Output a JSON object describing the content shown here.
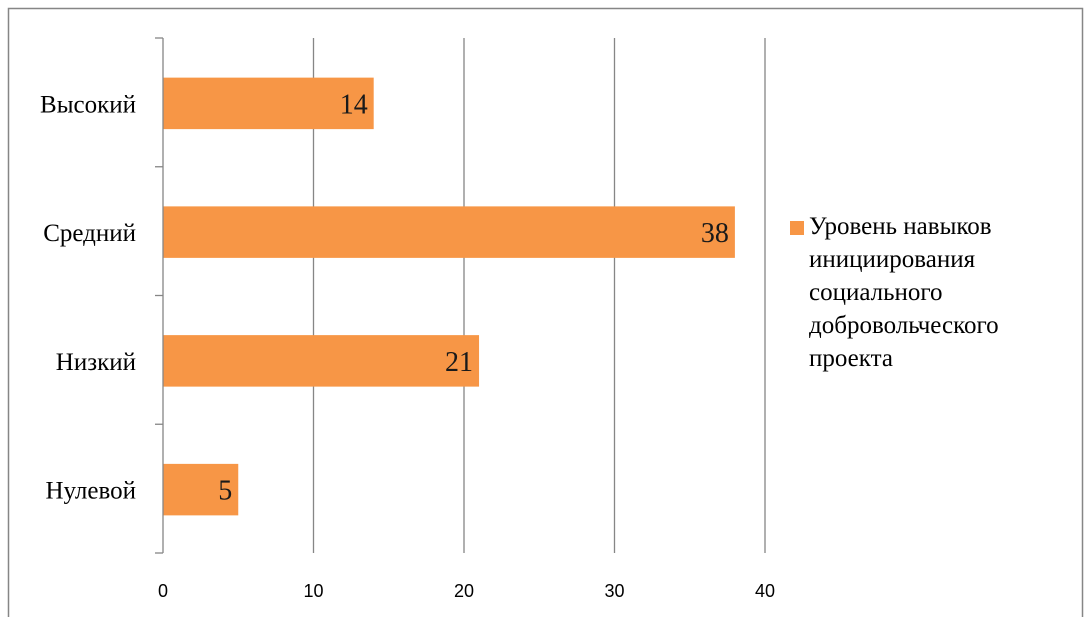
{
  "chart_data": {
    "type": "bar",
    "orientation": "horizontal",
    "categories": [
      "Высокий",
      "Средний",
      "Низкий",
      "Нулевой"
    ],
    "series": [
      {
        "name": "Уровень навыков инициирования социального добровольческого проекта",
        "values": [
          14,
          38,
          21,
          5
        ]
      }
    ],
    "xlim": [
      0,
      40
    ],
    "xticks": [
      0,
      10,
      20,
      30,
      40
    ],
    "grid": "vertical",
    "legend_position": "right",
    "data_labels": true,
    "colors": {
      "bar": "#F79646",
      "grid": "#868686",
      "axis": "#868686",
      "border": "#868686"
    }
  }
}
